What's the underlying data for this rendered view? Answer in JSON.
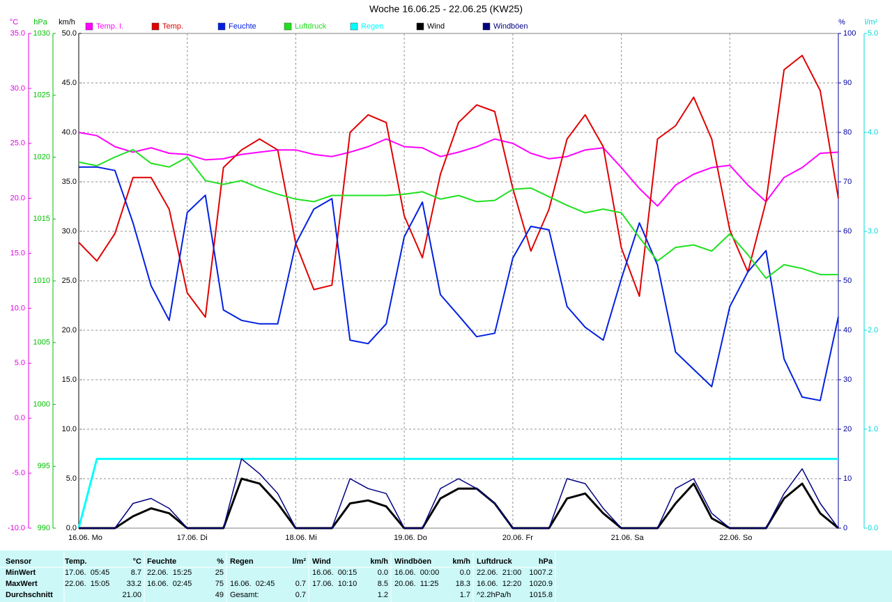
{
  "chart_data": {
    "type": "line",
    "title": "Woche 16.06.25 - 22.06.25 (KW25)",
    "x": [
      0,
      4,
      8,
      12,
      16,
      20,
      24,
      28,
      32,
      36,
      40,
      44,
      48,
      52,
      56,
      60,
      64,
      68,
      72,
      76,
      80,
      84,
      88,
      92,
      96,
      100,
      104,
      108,
      112,
      116,
      120,
      124,
      128,
      132,
      136,
      140,
      144,
      148,
      152,
      156,
      160,
      164,
      168
    ],
    "xlim": [
      0,
      168
    ],
    "xticks": [
      {
        "value": 0,
        "label": "16.06. Mo"
      },
      {
        "value": 24,
        "label": "17.06. Di"
      },
      {
        "value": 48,
        "label": "18.06. Mi"
      },
      {
        "value": 72,
        "label": "19.06. Do"
      },
      {
        "value": 96,
        "label": "20.06. Fr"
      },
      {
        "value": 120,
        "label": "21.06. Sa"
      },
      {
        "value": 144,
        "label": "22.06. So"
      }
    ],
    "grid": true,
    "axes": {
      "temp": {
        "label": "°C",
        "color": "#e000e0",
        "lim": [
          -10,
          35
        ],
        "ticks": [
          {
            "value": -10,
            "label": "-10.0"
          },
          {
            "value": -5,
            "label": "-5.0"
          },
          {
            "value": 0,
            "label": "0.0"
          },
          {
            "value": 5,
            "label": "5.0"
          },
          {
            "value": 10,
            "label": "10.0"
          },
          {
            "value": 15,
            "label": "15.0"
          },
          {
            "value": 20,
            "label": "20.0"
          },
          {
            "value": 25,
            "label": "25.0"
          },
          {
            "value": 30,
            "label": "30.0"
          },
          {
            "value": 35,
            "label": "35.0"
          }
        ]
      },
      "pressure": {
        "label": "hPa",
        "color": "#00c000",
        "lim": [
          990,
          1030
        ],
        "ticks": [
          990,
          995,
          1000,
          1005,
          1010,
          1015,
          1020,
          1025,
          1030
        ]
      },
      "wind": {
        "label": "km/h",
        "color": "#000000",
        "lim": [
          0,
          50
        ],
        "ticks": [
          {
            "value": 0,
            "label": "0.0"
          },
          {
            "value": 5,
            "label": "5.0"
          },
          {
            "value": 10,
            "label": "10.0"
          },
          {
            "value": 15,
            "label": "15.0"
          },
          {
            "value": 20,
            "label": "20.0"
          },
          {
            "value": 25,
            "label": "25.0"
          },
          {
            "value": 30,
            "label": "30.0"
          },
          {
            "value": 35,
            "label": "35.0"
          },
          {
            "value": 40,
            "label": "40.0"
          },
          {
            "value": 45,
            "label": "45.0"
          },
          {
            "value": 50,
            "label": "50.0"
          }
        ]
      },
      "humidity": {
        "label": "%",
        "color": "#0000a0",
        "lim": [
          0,
          100
        ],
        "ticks": [
          0,
          10,
          20,
          30,
          40,
          50,
          60,
          70,
          80,
          90,
          100
        ]
      },
      "rain": {
        "label": "l/m²",
        "color": "#00d8d8",
        "lim": [
          0,
          5
        ],
        "ticks": [
          {
            "value": 0,
            "label": "0.0"
          },
          {
            "value": 1,
            "label": "1.0"
          },
          {
            "value": 2,
            "label": "2.0"
          },
          {
            "value": 3,
            "label": "3.0"
          },
          {
            "value": 4,
            "label": "4.0"
          },
          {
            "value": 5,
            "label": "5.0"
          }
        ]
      }
    },
    "series": [
      {
        "name": "Temp. I.",
        "color": "#ff00ff",
        "axis": "temp",
        "values": [
          26.0,
          25.7,
          24.7,
          24.2,
          24.6,
          24.1,
          24.0,
          23.5,
          23.6,
          24.0,
          24.2,
          24.4,
          24.4,
          24.0,
          23.8,
          24.2,
          24.7,
          25.4,
          24.7,
          24.6,
          23.8,
          24.2,
          24.7,
          25.4,
          25.0,
          24.1,
          23.6,
          23.8,
          24.4,
          24.6,
          22.8,
          20.9,
          19.3,
          21.2,
          22.2,
          22.8,
          23.0,
          21.2,
          19.7,
          21.9,
          22.8,
          24.1,
          24.2
        ]
      },
      {
        "name": "Temp.",
        "color": "#e00000",
        "axis": "temp",
        "values": [
          16.0,
          14.3,
          16.8,
          21.9,
          21.9,
          19.0,
          11.4,
          9.2,
          22.8,
          24.4,
          25.4,
          24.4,
          15.9,
          11.7,
          12.1,
          26.0,
          27.6,
          26.9,
          18.4,
          14.6,
          22.2,
          26.9,
          28.5,
          27.9,
          20.9,
          15.2,
          19.0,
          25.4,
          27.6,
          24.7,
          15.5,
          11.1,
          25.4,
          26.6,
          29.2,
          25.4,
          17.1,
          13.3,
          19.7,
          31.7,
          33.0,
          29.8,
          20.0
        ]
      },
      {
        "name": "Feuchte",
        "color": "#0020e0",
        "axis": "humidity",
        "values": [
          73.0,
          73.0,
          72.3,
          61.7,
          49.0,
          42.0,
          63.8,
          67.3,
          44.1,
          42.0,
          41.3,
          41.3,
          57.5,
          64.5,
          66.6,
          38.0,
          37.3,
          41.3,
          58.9,
          65.9,
          47.2,
          43.0,
          38.7,
          39.4,
          54.6,
          61.0,
          60.3,
          44.8,
          40.6,
          38.0,
          50.4,
          61.7,
          53.2,
          35.6,
          32.1,
          28.6,
          44.8,
          51.8,
          56.1,
          34.2,
          26.5,
          25.8,
          42.7
        ]
      },
      {
        "name": "Luftdruck",
        "color": "#20e020",
        "axis": "pressure",
        "values": [
          1019.6,
          1019.3,
          1020.0,
          1020.6,
          1019.5,
          1019.2,
          1020.0,
          1018.1,
          1017.8,
          1018.1,
          1017.5,
          1017.0,
          1016.6,
          1016.4,
          1016.9,
          1016.9,
          1016.9,
          1016.9,
          1017.0,
          1017.2,
          1016.6,
          1016.9,
          1016.4,
          1016.5,
          1017.4,
          1017.5,
          1016.8,
          1016.1,
          1015.5,
          1015.8,
          1015.5,
          1013.5,
          1011.6,
          1012.7,
          1012.9,
          1012.4,
          1013.8,
          1012.1,
          1010.2,
          1011.3,
          1011.0,
          1010.5,
          1010.5
        ]
      },
      {
        "name": "Regen",
        "color": "#00ffff",
        "axis": "rain",
        "values": [
          0,
          0.7,
          0.7,
          0.7,
          0.7,
          0.7,
          0.7,
          0.7,
          0.7,
          0.7,
          0.7,
          0.7,
          0.7,
          0.7,
          0.7,
          0.7,
          0.7,
          0.7,
          0.7,
          0.7,
          0.7,
          0.7,
          0.7,
          0.7,
          0.7,
          0.7,
          0.7,
          0.7,
          0.7,
          0.7,
          0.7,
          0.7,
          0.7,
          0.7,
          0.7,
          0.7,
          0.7,
          0.7,
          0.7,
          0.7,
          0.7,
          0.7,
          0.7
        ]
      },
      {
        "name": "Wind",
        "color": "#000000",
        "axis": "wind",
        "values": [
          0,
          0,
          0,
          1.2,
          2.0,
          1.5,
          0,
          0,
          0,
          5.0,
          4.5,
          2.5,
          0,
          0,
          0,
          2.5,
          2.8,
          2.2,
          0,
          0,
          3.0,
          4.0,
          4.0,
          2.5,
          0,
          0,
          0,
          3.0,
          3.5,
          1.5,
          0,
          0,
          0,
          2.5,
          4.5,
          1.0,
          0,
          0,
          0,
          3.0,
          4.5,
          1.5,
          0
        ]
      },
      {
        "name": "Windböen",
        "color": "#000080",
        "axis": "wind",
        "values": [
          0,
          0,
          0,
          2.5,
          3.0,
          2.0,
          0,
          0,
          0,
          7.0,
          5.5,
          3.5,
          0,
          0,
          0,
          5.0,
          4.0,
          3.5,
          0,
          0,
          4.0,
          5.0,
          4.0,
          2.5,
          0,
          0,
          0,
          5.0,
          4.5,
          2.0,
          0,
          0,
          0,
          4.0,
          5.0,
          1.5,
          0,
          0,
          0,
          3.5,
          6.0,
          2.5,
          0
        ]
      }
    ]
  },
  "table": {
    "header": [
      {
        "name": "Sensor"
      },
      {
        "name": "Temp.",
        "unit": "°C"
      },
      {
        "name": "Feuchte",
        "unit": "%"
      },
      {
        "name": "Regen",
        "unit": "l/m²"
      },
      {
        "name": "Wind",
        "unit": "km/h"
      },
      {
        "name": "Windböen",
        "unit": "km/h"
      },
      {
        "name": "Luftdruck",
        "unit": "hPa"
      }
    ],
    "rows": [
      {
        "label": "MinWert",
        "cells": [
          [
            "17.06.  05:45",
            "8.7"
          ],
          [
            "22.06.  15:25",
            "25"
          ],
          null,
          [
            "16.06.  00:15",
            "0.0"
          ],
          [
            "16.06.  00:00",
            "0.0"
          ],
          [
            "22.06.  21:00",
            "1007.2"
          ]
        ]
      },
      {
        "label": "MaxWert",
        "cells": [
          [
            "22.06.  15:05",
            "33.2"
          ],
          [
            "16.06.  02:45",
            "75"
          ],
          [
            "16.06.  02:45",
            "0.7"
          ],
          [
            "17.06.  10:10",
            "8.5"
          ],
          [
            "20.06.  11:25",
            "18.3"
          ],
          [
            "16.06.  12:20",
            "1020.9"
          ]
        ]
      },
      {
        "label": "Durchschnitt",
        "cells": [
          [
            null,
            "21.00"
          ],
          [
            null,
            "49"
          ],
          [
            "Gesamt:",
            "0.7"
          ],
          [
            null,
            "1.2"
          ],
          [
            null,
            "1.7"
          ],
          [
            "^2.2hPa/h",
            "1015.8"
          ]
        ]
      }
    ]
  }
}
